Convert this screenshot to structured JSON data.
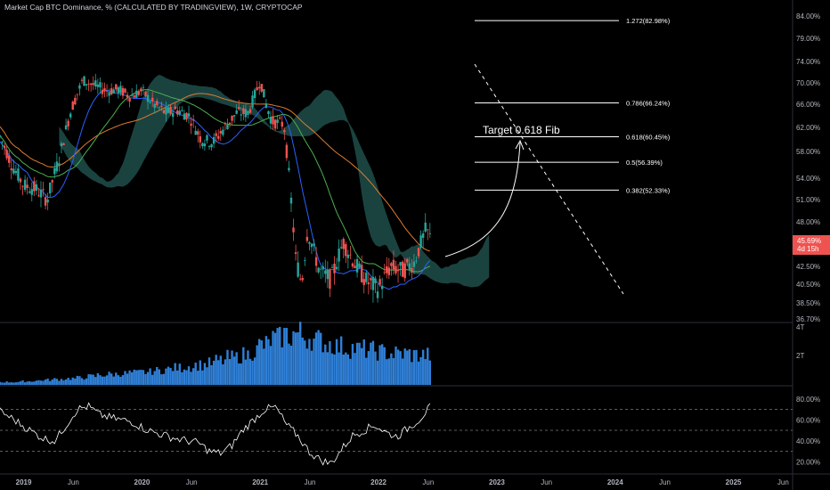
{
  "title": "Market Cap BTC Dominance, % (CALCULATED BY TRADINGVIEW), 1W, CRYPTOCAP",
  "colors": {
    "background": "#000000",
    "up": "#26a69a",
    "down": "#ef5350",
    "cloud": "#1f4f4b",
    "ma_long": "#e07b2f",
    "ma_mid": "#4caf50",
    "ma_short": "#2962ff",
    "volume": "#2f7fd6",
    "rsi": "#ffffff",
    "price_tag": "#ef5350"
  },
  "chart_data": [
    {
      "type": "line",
      "name": "price-panel",
      "y_unit": "%",
      "ylim": [
        35.5,
        86.5
      ],
      "y_ticks": [
        "84.00%",
        "79.00%",
        "74.00%",
        "70.00%",
        "66.00%",
        "62.00%",
        "58.00%",
        "54.00%",
        "51.00%",
        "48.00%",
        "45.69%",
        "42.50%",
        "40.50%",
        "38.50%",
        "36.70%"
      ],
      "y_tick_values": [
        84.0,
        79.0,
        74.0,
        70.0,
        66.0,
        62.0,
        58.0,
        54.0,
        51.0,
        48.0,
        45.69,
        42.5,
        40.5,
        38.5,
        36.7
      ],
      "x_ticks": [
        "2019",
        "Jun",
        "2020",
        "Jun",
        "2021",
        "Jun",
        "2022",
        "Jun",
        "2023",
        "Jun",
        "2024",
        "Jun",
        "2025",
        "Jun"
      ],
      "x_tick_values": [
        2019.0,
        2019.42,
        2020.0,
        2020.42,
        2021.0,
        2021.42,
        2022.0,
        2022.42,
        2023.0,
        2023.42,
        2024.0,
        2024.42,
        2025.0,
        2025.42
      ],
      "xlim": [
        2018.8,
        2025.5
      ],
      "price_series": {
        "x": [
          2018.8,
          2018.9,
          2019.0,
          2019.1,
          2019.2,
          2019.3,
          2019.4,
          2019.5,
          2019.6,
          2019.7,
          2019.8,
          2019.9,
          2020.0,
          2020.1,
          2020.2,
          2020.3,
          2020.4,
          2020.5,
          2020.6,
          2020.7,
          2020.8,
          2020.9,
          2021.0,
          2021.05,
          2021.1,
          2021.2,
          2021.3,
          2021.35,
          2021.4,
          2021.5,
          2021.6,
          2021.7,
          2021.8,
          2021.9,
          2022.0,
          2022.1,
          2022.2,
          2022.3,
          2022.4,
          2022.45
        ],
        "values": [
          60.5,
          56,
          53,
          52.5,
          51,
          57,
          65,
          70.5,
          69.5,
          68.5,
          68.8,
          67.5,
          68.5,
          66,
          64.5,
          65,
          64,
          60,
          59.5,
          62,
          64.5,
          64.5,
          70.5,
          66,
          63,
          62.5,
          43.5,
          40.5,
          47,
          42,
          41,
          45.5,
          42.8,
          40.8,
          40,
          42.5,
          42,
          43,
          47,
          45.69
        ]
      },
      "fib_levels": [
        {
          "label": "1.272(82.98%)",
          "value": 82.98
        },
        {
          "label": "0.786(66.24%)",
          "value": 66.24
        },
        {
          "label": "0.618(60.45%)",
          "value": 60.45
        },
        {
          "label": "0.5(56.39%)",
          "value": 56.39
        },
        {
          "label": "0.382(52.33%)",
          "value": 52.33
        }
      ],
      "current_value": "45.69%",
      "countdown": "4d 15h",
      "annotation": "Target 0.618 Fib"
    },
    {
      "type": "bar",
      "name": "volume-panel",
      "y_ticks": [
        "4T",
        "2T"
      ],
      "values": [
        0.2,
        0.2,
        0.25,
        0.3,
        0.35,
        0.4,
        0.45,
        0.5,
        0.6,
        0.7,
        0.75,
        0.8,
        0.85,
        0.9,
        1.0,
        1.1,
        1.2,
        1.3,
        1.4,
        1.5,
        1.7,
        1.9,
        2.1,
        2.4,
        2.8,
        3.2,
        3.5,
        3.6,
        3.4,
        3.1,
        2.9,
        2.7,
        2.6,
        2.5,
        2.4,
        2.3,
        2.2,
        2.2,
        2.1,
        2.1
      ]
    },
    {
      "type": "line",
      "name": "rsi-panel",
      "ylim": [
        10,
        90
      ],
      "y_ticks": [
        "80.00%",
        "60.00%",
        "40.00%",
        "20.00%"
      ],
      "y_tick_values": [
        80,
        60,
        40,
        20
      ],
      "bands": [
        70,
        50,
        30
      ],
      "values": [
        68,
        62,
        55,
        48,
        42,
        40,
        55,
        70,
        73,
        65,
        62,
        60,
        58,
        52,
        48,
        45,
        42,
        40,
        38,
        30,
        28,
        35,
        50,
        60,
        70,
        72,
        55,
        45,
        30,
        22,
        18,
        32,
        45,
        50,
        55,
        48,
        44,
        52,
        60,
        72
      ]
    }
  ]
}
